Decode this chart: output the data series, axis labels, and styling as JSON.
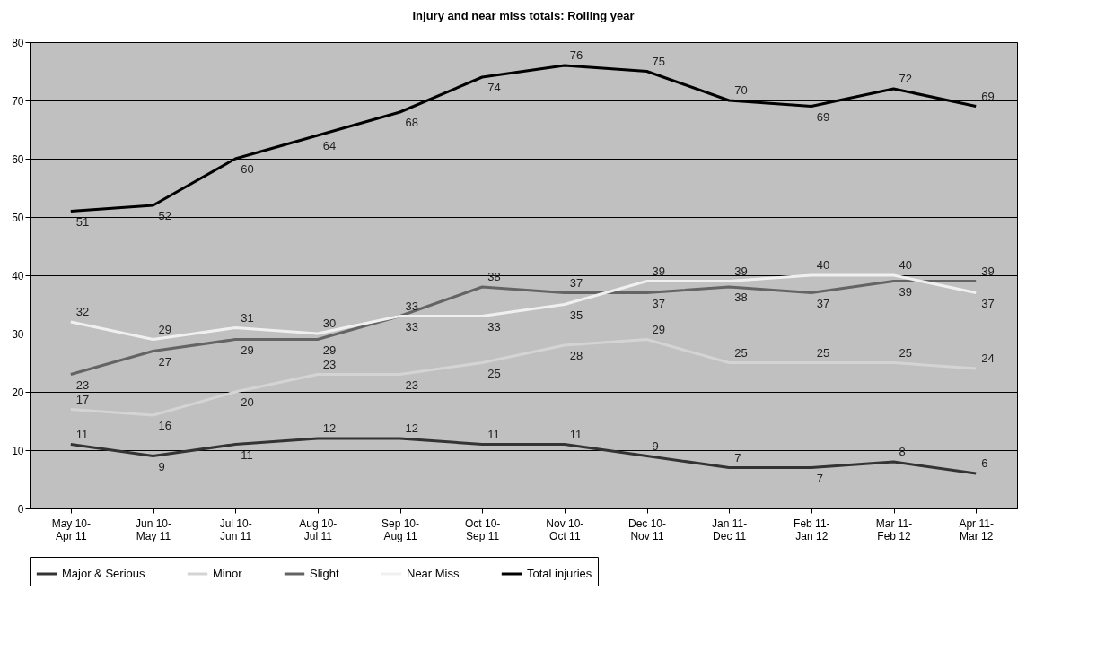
{
  "chart_data": {
    "type": "line",
    "title": "Injury and near miss totals: Rolling year",
    "categories": [
      "May 10-Apr 11",
      "Jun 10-May 11",
      "Jul 10-Jun 11",
      "Aug 10-Jul 11",
      "Sep 10-Aug 11",
      "Oct 10-Sep 11",
      "Nov 10-Oct 11",
      "Dec 10-Nov 11",
      "Jan 11-Dec 11",
      "Feb 11-Jan 12",
      "Mar 11-Feb 12",
      "Apr 11-Mar 12"
    ],
    "series": [
      {
        "name": "Major & Serious",
        "color": "#333333",
        "values": [
          11,
          9,
          11,
          12,
          12,
          11,
          11,
          9,
          7,
          7,
          8,
          6
        ]
      },
      {
        "name": "Minor",
        "color": "#d4d4d4",
        "values": [
          17,
          16,
          20,
          23,
          23,
          25,
          28,
          29,
          25,
          25,
          25,
          24
        ]
      },
      {
        "name": "Slight",
        "color": "#646464",
        "values": [
          23,
          27,
          29,
          29,
          33,
          38,
          37,
          37,
          38,
          37,
          39,
          39
        ]
      },
      {
        "name": "Near Miss",
        "color": "#f0f0f0",
        "values": [
          32,
          29,
          31,
          30,
          33,
          33,
          35,
          39,
          39,
          40,
          40,
          37
        ]
      },
      {
        "name": "Total injuries",
        "color": "#000000",
        "values": [
          51,
          52,
          60,
          64,
          68,
          74,
          76,
          75,
          70,
          69,
          72,
          69
        ]
      }
    ],
    "ylim": [
      0,
      80
    ],
    "yticks": [
      0,
      10,
      20,
      30,
      40,
      50,
      60,
      70,
      80
    ],
    "grid": "y",
    "legend": "bottom",
    "data_labels": true,
    "marker": "none",
    "line_style": "solid"
  }
}
